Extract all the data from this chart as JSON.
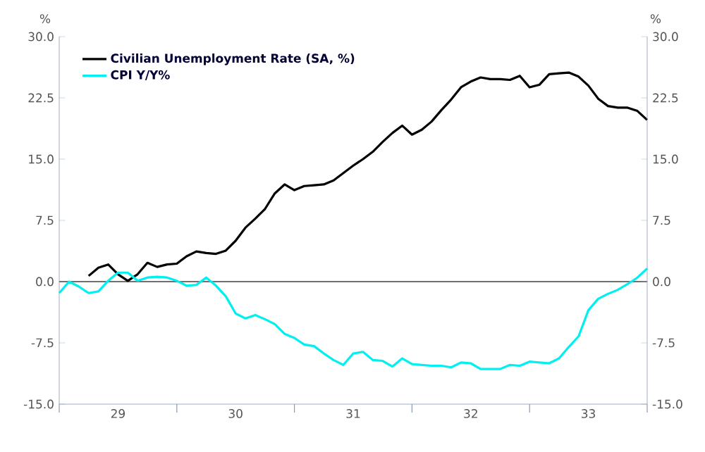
{
  "chart_data": {
    "type": "line",
    "ylabel": "%",
    "y2label": "%",
    "xlim": [
      "1929-01",
      "1934-01"
    ],
    "xticks": [
      {
        "value": "1929-01",
        "label": null
      },
      {
        "value": "1929-07",
        "label": "29"
      },
      {
        "value": "1930-01",
        "label": null
      },
      {
        "value": "1930-07",
        "label": "30"
      },
      {
        "value": "1931-01",
        "label": null
      },
      {
        "value": "1931-07",
        "label": "31"
      },
      {
        "value": "1932-01",
        "label": null
      },
      {
        "value": "1932-07",
        "label": "32"
      },
      {
        "value": "1933-01",
        "label": null
      },
      {
        "value": "1933-07",
        "label": "33"
      },
      {
        "value": "1934-01",
        "label": null
      }
    ],
    "ylim": [
      -15,
      30
    ],
    "yticks": [
      {
        "value": -15,
        "label": "-15.0"
      },
      {
        "value": -7.5,
        "label": "-7.5"
      },
      {
        "value": 0,
        "label": "0.0"
      },
      {
        "value": 7.5,
        "label": "7.5"
      },
      {
        "value": 15,
        "label": "15.0"
      },
      {
        "value": 22.5,
        "label": "22.5"
      },
      {
        "value": 30,
        "label": "30.0"
      }
    ],
    "y2lim": [
      -15,
      30
    ],
    "y2ticks": [
      {
        "value": -15,
        "label": "-15.0"
      },
      {
        "value": -7.5,
        "label": "-7.5"
      },
      {
        "value": 0,
        "label": "0.0"
      },
      {
        "value": 7.5,
        "label": "7.5"
      },
      {
        "value": 15,
        "label": "15.0"
      },
      {
        "value": 22.5,
        "label": "22.5"
      },
      {
        "value": 30,
        "label": "30.0"
      }
    ],
    "legend": "top left",
    "marker": "none",
    "line_style": "solid",
    "ref_lines": [
      {
        "axis": "y",
        "value": 0,
        "label": null,
        "color": "#707070"
      }
    ],
    "series": [
      {
        "name": "Civilian Unemployment Rate (SA, %)",
        "color": "#000000",
        "x": [
          "1929-04",
          "1929-05",
          "1929-06",
          "1929-07",
          "1929-08",
          "1929-09",
          "1929-10",
          "1929-11",
          "1929-12",
          "1930-01",
          "1930-02",
          "1930-03",
          "1930-04",
          "1930-05",
          "1930-06",
          "1930-07",
          "1930-08",
          "1930-09",
          "1930-10",
          "1930-11",
          "1930-12",
          "1931-01",
          "1931-02",
          "1931-03",
          "1931-04",
          "1931-05",
          "1931-06",
          "1931-07",
          "1931-08",
          "1931-09",
          "1931-10",
          "1931-11",
          "1931-12",
          "1932-01",
          "1932-02",
          "1932-03",
          "1932-04",
          "1932-05",
          "1932-06",
          "1932-07",
          "1932-08",
          "1932-09",
          "1932-10",
          "1932-11",
          "1932-12",
          "1933-01",
          "1933-02",
          "1933-03",
          "1933-04",
          "1933-05",
          "1933-06",
          "1933-07",
          "1933-08",
          "1933-09",
          "1933-10",
          "1933-11",
          "1933-12",
          "1934-01"
        ],
        "values": [
          0.7,
          1.7,
          2.1,
          0.9,
          0.1,
          0.9,
          2.3,
          1.8,
          2.1,
          2.2,
          3.1,
          3.7,
          3.5,
          3.4,
          3.8,
          5.0,
          6.6,
          7.7,
          8.9,
          10.8,
          11.9,
          11.2,
          11.7,
          11.8,
          11.9,
          12.4,
          13.3,
          14.2,
          15.0,
          15.9,
          17.1,
          18.2,
          19.1,
          18.0,
          18.6,
          19.6,
          21.0,
          22.3,
          23.8,
          24.5,
          25.0,
          24.8,
          24.8,
          24.7,
          25.2,
          23.8,
          24.1,
          25.4,
          25.5,
          25.6,
          25.1,
          24.0,
          22.4,
          21.5,
          21.3,
          21.3,
          20.9,
          19.8
        ]
      },
      {
        "name": "CPI Y/Y%",
        "color": "#00f0f0",
        "x": [
          "1929-01",
          "1929-02",
          "1929-03",
          "1929-04",
          "1929-05",
          "1929-06",
          "1929-07",
          "1929-08",
          "1929-09",
          "1929-10",
          "1929-11",
          "1929-12",
          "1930-01",
          "1930-02",
          "1930-03",
          "1930-04",
          "1930-05",
          "1930-06",
          "1930-07",
          "1930-08",
          "1930-09",
          "1930-10",
          "1930-11",
          "1930-12",
          "1931-01",
          "1931-02",
          "1931-03",
          "1931-04",
          "1931-05",
          "1931-06",
          "1931-07",
          "1931-08",
          "1931-09",
          "1931-10",
          "1931-11",
          "1931-12",
          "1932-01",
          "1932-02",
          "1932-03",
          "1932-04",
          "1932-05",
          "1932-06",
          "1932-07",
          "1932-08",
          "1932-09",
          "1932-10",
          "1932-11",
          "1932-12",
          "1933-01",
          "1933-02",
          "1933-03",
          "1933-04",
          "1933-05",
          "1933-06",
          "1933-07",
          "1933-08",
          "1933-09",
          "1933-10",
          "1933-11",
          "1933-12",
          "1934-01"
        ],
        "values": [
          -1.4,
          0.0,
          -0.6,
          -1.4,
          -1.2,
          0.1,
          1.1,
          1.1,
          0.1,
          0.5,
          0.6,
          0.5,
          0.1,
          -0.5,
          -0.4,
          0.5,
          -0.5,
          -1.8,
          -3.9,
          -4.5,
          -4.1,
          -4.6,
          -5.2,
          -6.4,
          -6.9,
          -7.7,
          -7.9,
          -8.8,
          -9.6,
          -10.2,
          -8.8,
          -8.6,
          -9.6,
          -9.7,
          -10.4,
          -9.4,
          -10.1,
          -10.2,
          -10.3,
          -10.3,
          -10.5,
          -9.9,
          -10.0,
          -10.7,
          -10.7,
          -10.7,
          -10.2,
          -10.3,
          -9.8,
          -9.9,
          -10.0,
          -9.4,
          -8.0,
          -6.7,
          -3.5,
          -2.1,
          -1.5,
          -1.0,
          -0.3,
          0.5,
          1.6
        ]
      }
    ]
  }
}
